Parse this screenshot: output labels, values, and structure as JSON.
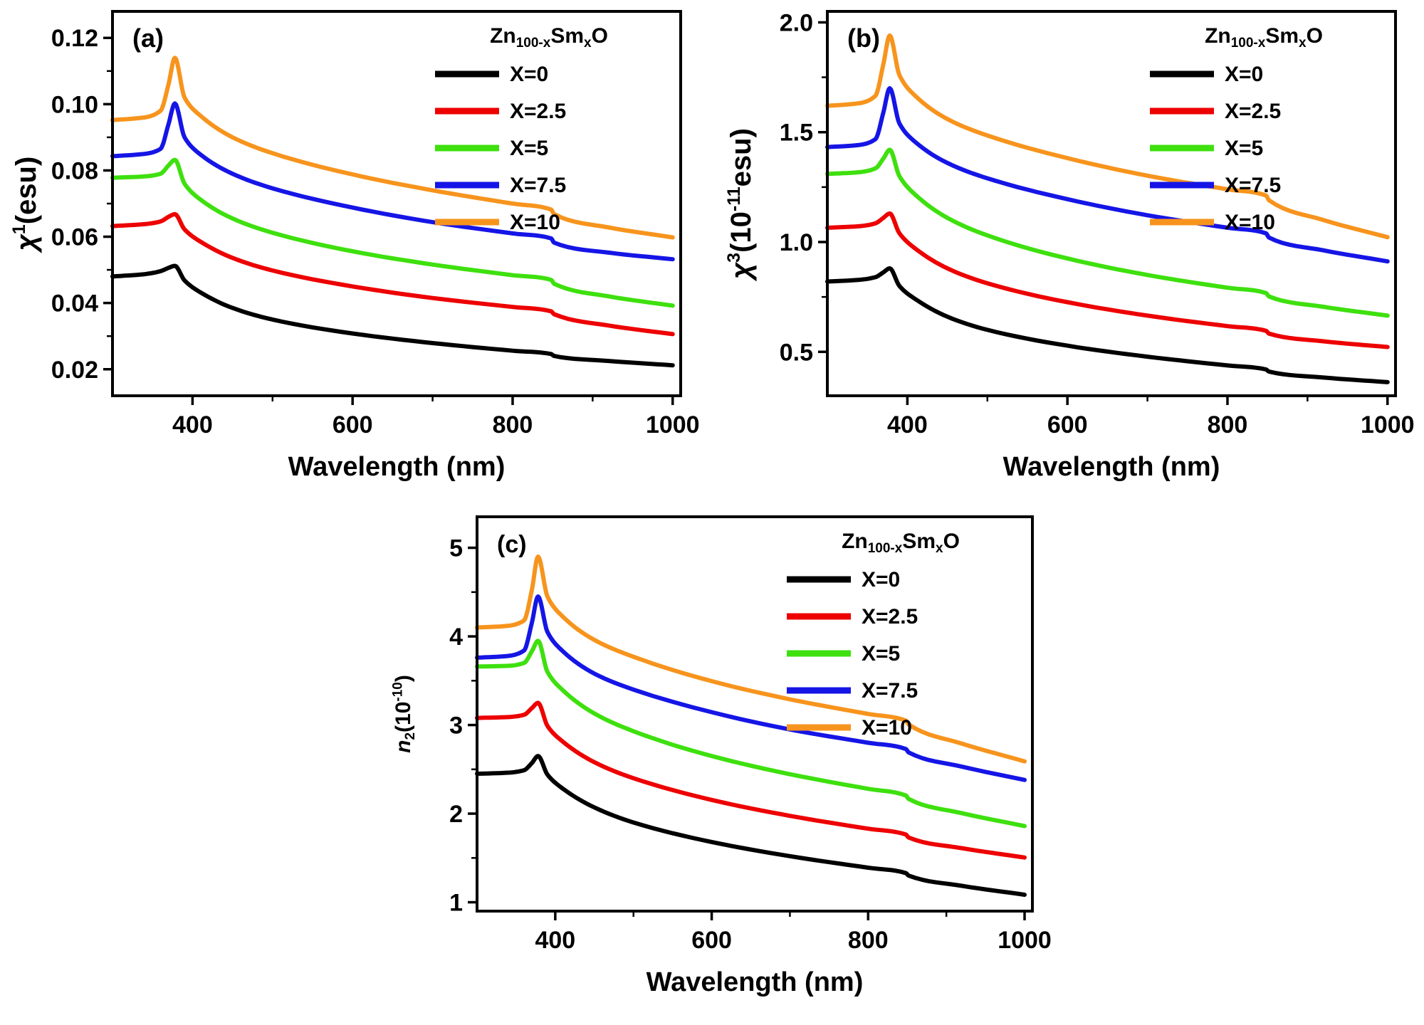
{
  "legend": {
    "title_text": "Zn100-xSmxO",
    "title_parts": [
      {
        "t": "Zn"
      },
      {
        "t": "100-x",
        "sub": true
      },
      {
        "t": "Sm"
      },
      {
        "t": "x",
        "sub": true
      },
      {
        "t": "O"
      }
    ],
    "title_color": "#000000"
  },
  "chart_data": [
    {
      "id": "a",
      "type": "line",
      "panel_label": "(a)",
      "xlabel": "Wavelength (nm)",
      "ylabel_text": "χ1(esu)",
      "ylabel_parts": [
        {
          "t": "χ",
          "italic": true
        },
        {
          "t": "1",
          "sup": true
        },
        {
          "t": "(esu)"
        }
      ],
      "xlim": [
        300,
        1010
      ],
      "ylim": [
        0.012,
        0.128
      ],
      "xticks": [
        400,
        600,
        800,
        1000
      ],
      "xtick_labels": [
        "400",
        "600",
        "800",
        "1000"
      ],
      "xticks_minor": [
        500,
        700,
        900
      ],
      "yticks": [
        0.02,
        0.04,
        0.06,
        0.08,
        0.1,
        0.12
      ],
      "ytick_labels": [
        "0.02",
        "0.04",
        "0.06",
        "0.08",
        "0.10",
        "0.12"
      ],
      "yticks_minor": [
        0.03,
        0.05,
        0.07,
        0.09,
        0.11
      ],
      "x": [
        300,
        340,
        360,
        370,
        378,
        390,
        410,
        450,
        500,
        600,
        700,
        800,
        848,
        852,
        920,
        1000
      ],
      "series": [
        {
          "name": "X=0",
          "color": "#000000",
          "y": [
            0.048,
            0.0487,
            0.0496,
            0.0506,
            0.0512,
            0.0468,
            0.0432,
            0.0385,
            0.035,
            0.0308,
            0.0279,
            0.0256,
            0.0246,
            0.024,
            0.0225,
            0.0212
          ]
        },
        {
          "name": "X=2.5",
          "color": "#ed0000",
          "y": [
            0.0632,
            0.0638,
            0.0646,
            0.066,
            0.0668,
            0.0622,
            0.0585,
            0.0536,
            0.0498,
            0.045,
            0.0415,
            0.0388,
            0.0375,
            0.0366,
            0.0332,
            0.0306
          ]
        },
        {
          "name": "X=5",
          "color": "#3ee00e",
          "y": [
            0.0778,
            0.0782,
            0.079,
            0.0815,
            0.0832,
            0.076,
            0.0712,
            0.0655,
            0.0612,
            0.0556,
            0.0516,
            0.0484,
            0.047,
            0.0458,
            0.042,
            0.0392
          ]
        },
        {
          "name": "X=7.5",
          "color": "#1515e6",
          "y": [
            0.0843,
            0.085,
            0.0865,
            0.094,
            0.1002,
            0.09,
            0.0848,
            0.079,
            0.0746,
            0.0688,
            0.0644,
            0.061,
            0.0595,
            0.0582,
            0.0552,
            0.0532
          ]
        },
        {
          "name": "X=10",
          "color": "#f7941d",
          "y": [
            0.0952,
            0.096,
            0.098,
            0.106,
            0.114,
            0.102,
            0.0965,
            0.09,
            0.0852,
            0.0788,
            0.074,
            0.07,
            0.0682,
            0.0668,
            0.0628,
            0.0598
          ]
        }
      ]
    },
    {
      "id": "b",
      "type": "line",
      "panel_label": "(b)",
      "xlabel": "Wavelength (nm)",
      "ylabel_text": "χ3(10-11esu)",
      "ylabel_parts": [
        {
          "t": "χ",
          "italic": true
        },
        {
          "t": "3",
          "sup": true
        },
        {
          "t": "(10"
        },
        {
          "t": "-11",
          "sup": true
        },
        {
          "t": "esu)"
        }
      ],
      "xlim": [
        300,
        1010
      ],
      "ylim": [
        0.3,
        2.05
      ],
      "xticks": [
        400,
        600,
        800,
        1000
      ],
      "xtick_labels": [
        "400",
        "600",
        "800",
        "1000"
      ],
      "xticks_minor": [
        500,
        700,
        900
      ],
      "yticks": [
        0.5,
        1.0,
        1.5,
        2.0
      ],
      "ytick_labels": [
        "0.5",
        "1.0",
        "1.5",
        "2.0"
      ],
      "yticks_minor": [
        0.75,
        1.25,
        1.75
      ],
      "x": [
        300,
        340,
        360,
        370,
        378,
        390,
        410,
        450,
        500,
        600,
        700,
        800,
        848,
        852,
        920,
        1000
      ],
      "series": [
        {
          "name": "X=0",
          "color": "#000000",
          "y": [
            0.82,
            0.828,
            0.84,
            0.862,
            0.88,
            0.8,
            0.74,
            0.66,
            0.6,
            0.528,
            0.478,
            0.438,
            0.42,
            0.41,
            0.383,
            0.362
          ]
        },
        {
          "name": "X=2.5",
          "color": "#ed0000",
          "y": [
            1.065,
            1.072,
            1.085,
            1.11,
            1.13,
            1.04,
            0.97,
            0.88,
            0.812,
            0.726,
            0.665,
            0.617,
            0.596,
            0.583,
            0.548,
            0.522
          ]
        },
        {
          "name": "X=5",
          "color": "#3ee00e",
          "y": [
            1.31,
            1.318,
            1.335,
            1.38,
            1.42,
            1.3,
            1.215,
            1.11,
            1.03,
            0.925,
            0.85,
            0.792,
            0.768,
            0.752,
            0.705,
            0.665
          ]
        },
        {
          "name": "X=7.5",
          "color": "#1515e6",
          "y": [
            1.432,
            1.442,
            1.468,
            1.59,
            1.7,
            1.54,
            1.455,
            1.36,
            1.29,
            1.195,
            1.122,
            1.065,
            1.04,
            1.02,
            0.962,
            0.912
          ]
        },
        {
          "name": "X=10",
          "color": "#f7941d",
          "y": [
            1.62,
            1.632,
            1.665,
            1.81,
            1.94,
            1.76,
            1.665,
            1.56,
            1.485,
            1.382,
            1.302,
            1.24,
            1.212,
            1.19,
            1.1,
            1.022
          ]
        }
      ]
    },
    {
      "id": "c",
      "type": "line",
      "panel_label": "(c)",
      "xlabel": "Wavelength (nm)",
      "ylabel_text": "n2(10-10)",
      "ylabel_parts": [
        {
          "t": "n",
          "italic": true
        },
        {
          "t": "2",
          "sub": true
        },
        {
          "t": "(10"
        },
        {
          "t": "-10",
          "sup": true
        },
        {
          "t": ")"
        }
      ],
      "xlim": [
        300,
        1010
      ],
      "ylim": [
        0.9,
        5.35
      ],
      "xticks": [
        400,
        600,
        800,
        1000
      ],
      "xtick_labels": [
        "400",
        "600",
        "800",
        "1000"
      ],
      "xticks_minor": [
        500,
        700,
        900
      ],
      "yticks": [
        1,
        2,
        3,
        4,
        5
      ],
      "ytick_labels": [
        "1",
        "2",
        "3",
        "4",
        "5"
      ],
      "yticks_minor": [
        1.5,
        2.5,
        3.5,
        4.5
      ],
      "x": [
        300,
        340,
        360,
        370,
        378,
        390,
        410,
        450,
        500,
        600,
        700,
        800,
        848,
        852,
        920,
        1000
      ],
      "series": [
        {
          "name": "X=0",
          "color": "#000000",
          "y": [
            2.45,
            2.462,
            2.49,
            2.57,
            2.65,
            2.44,
            2.28,
            2.07,
            1.9,
            1.68,
            1.52,
            1.39,
            1.33,
            1.3,
            1.185,
            1.085
          ]
        },
        {
          "name": "X=2.5",
          "color": "#ed0000",
          "y": [
            3.08,
            3.09,
            3.115,
            3.19,
            3.25,
            2.99,
            2.81,
            2.58,
            2.4,
            2.155,
            1.975,
            1.83,
            1.765,
            1.73,
            1.61,
            1.505
          ]
        },
        {
          "name": "X=5",
          "color": "#3ee00e",
          "y": [
            3.66,
            3.668,
            3.7,
            3.83,
            3.95,
            3.6,
            3.39,
            3.13,
            2.93,
            2.65,
            2.445,
            2.28,
            2.205,
            2.165,
            2.005,
            1.86
          ]
        },
        {
          "name": "X=7.5",
          "color": "#1515e6",
          "y": [
            3.76,
            3.78,
            3.84,
            4.15,
            4.45,
            4.05,
            3.83,
            3.58,
            3.4,
            3.145,
            2.95,
            2.8,
            2.73,
            2.69,
            2.53,
            2.38
          ]
        },
        {
          "name": "X=10",
          "color": "#f7941d",
          "y": [
            4.1,
            4.12,
            4.18,
            4.52,
            4.9,
            4.45,
            4.22,
            3.96,
            3.77,
            3.495,
            3.29,
            3.125,
            3.05,
            3.005,
            2.79,
            2.59
          ]
        }
      ]
    }
  ]
}
